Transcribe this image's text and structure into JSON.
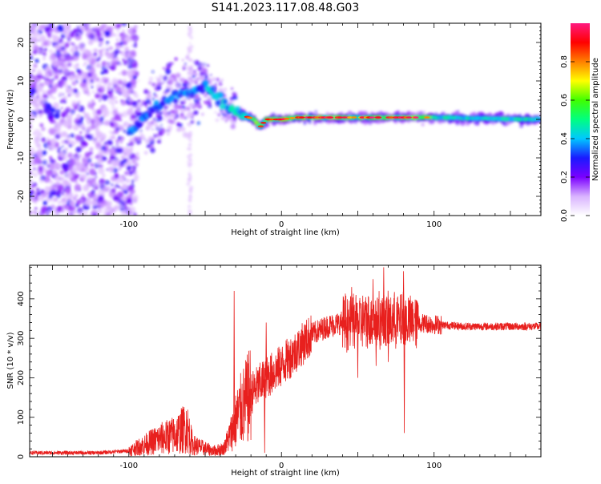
{
  "figure_title": "S141.2023.117.08.48.G03",
  "chart_data": [
    {
      "type": "heatmap",
      "xlabel": "Height of straight line (km)",
      "ylabel": "Frequency (Hz)",
      "xlim": [
        -165,
        170
      ],
      "ylim": [
        -25,
        25
      ],
      "x_ticks": [
        -100,
        0,
        100
      ],
      "y_ticks": [
        -20,
        -10,
        0,
        10,
        20
      ],
      "colorbar": {
        "label": "Normalized spectral amplitude",
        "range": [
          0,
          1
        ],
        "ticks": [
          0.0,
          0.2,
          0.4,
          0.6,
          0.8
        ],
        "tick_labels": [
          "0.0",
          "0.2",
          "0.4",
          "0.6",
          "0.8"
        ],
        "colormap": [
          "#ffffff",
          "#d9b3ff",
          "#7a00ff",
          "#1a1aff",
          "#00c8ff",
          "#00ff80",
          "#40ff00",
          "#ffff00",
          "#ff8000",
          "#ff0000",
          "#ff1a80"
        ]
      },
      "ridge": [
        {
          "x": -100,
          "y": -3
        },
        {
          "x": -90,
          "y": 0
        },
        {
          "x": -80,
          "y": 4
        },
        {
          "x": -70,
          "y": 6
        },
        {
          "x": -60,
          "y": 7
        },
        {
          "x": -50,
          "y": 9
        },
        {
          "x": -42,
          "y": 6
        },
        {
          "x": -35,
          "y": 3
        },
        {
          "x": -25,
          "y": 1
        },
        {
          "x": -18,
          "y": 0
        },
        {
          "x": -14,
          "y": -2
        },
        {
          "x": -10,
          "y": 0
        },
        {
          "x": 0,
          "y": 0
        },
        {
          "x": 10,
          "y": 0.5
        },
        {
          "x": 50,
          "y": 0.5
        },
        {
          "x": 100,
          "y": 0.5
        },
        {
          "x": 170,
          "y": 0
        }
      ]
    },
    {
      "type": "line",
      "xlabel": "Height of straight line (km)",
      "ylabel": "SNR (10 * v/v)",
      "xlim": [
        -165,
        170
      ],
      "ylim": [
        0,
        485
      ],
      "x_ticks": [
        -100,
        0,
        100
      ],
      "y_ticks": [
        0,
        100,
        200,
        300,
        400
      ],
      "line_color": "#e8201e",
      "envelope": [
        {
          "x": -165,
          "y": 10
        },
        {
          "x": -120,
          "y": 10
        },
        {
          "x": -100,
          "y": 15
        },
        {
          "x": -90,
          "y": 30
        },
        {
          "x": -80,
          "y": 45
        },
        {
          "x": -70,
          "y": 55
        },
        {
          "x": -62,
          "y": 75
        },
        {
          "x": -58,
          "y": 30
        },
        {
          "x": -45,
          "y": 15
        },
        {
          "x": -38,
          "y": 20
        },
        {
          "x": -33,
          "y": 60
        },
        {
          "x": -28,
          "y": 110
        },
        {
          "x": -20,
          "y": 160
        },
        {
          "x": -10,
          "y": 200
        },
        {
          "x": 0,
          "y": 230
        },
        {
          "x": 10,
          "y": 270
        },
        {
          "x": 20,
          "y": 310
        },
        {
          "x": 30,
          "y": 330
        },
        {
          "x": 40,
          "y": 340
        },
        {
          "x": 60,
          "y": 345
        },
        {
          "x": 80,
          "y": 345
        },
        {
          "x": 100,
          "y": 335
        },
        {
          "x": 120,
          "y": 330
        },
        {
          "x": 170,
          "y": 330
        }
      ],
      "spikes": [
        {
          "x": -31,
          "y": 420
        },
        {
          "x": -32,
          "y": 40
        },
        {
          "x": -11,
          "y": 10
        },
        {
          "x": -10,
          "y": 340
        },
        {
          "x": 46,
          "y": 430
        },
        {
          "x": 50,
          "y": 200
        },
        {
          "x": 60,
          "y": 450
        },
        {
          "x": 62,
          "y": 230
        },
        {
          "x": 67,
          "y": 480
        },
        {
          "x": 70,
          "y": 240
        },
        {
          "x": 80,
          "y": 470
        },
        {
          "x": 80.5,
          "y": 60
        }
      ]
    }
  ]
}
